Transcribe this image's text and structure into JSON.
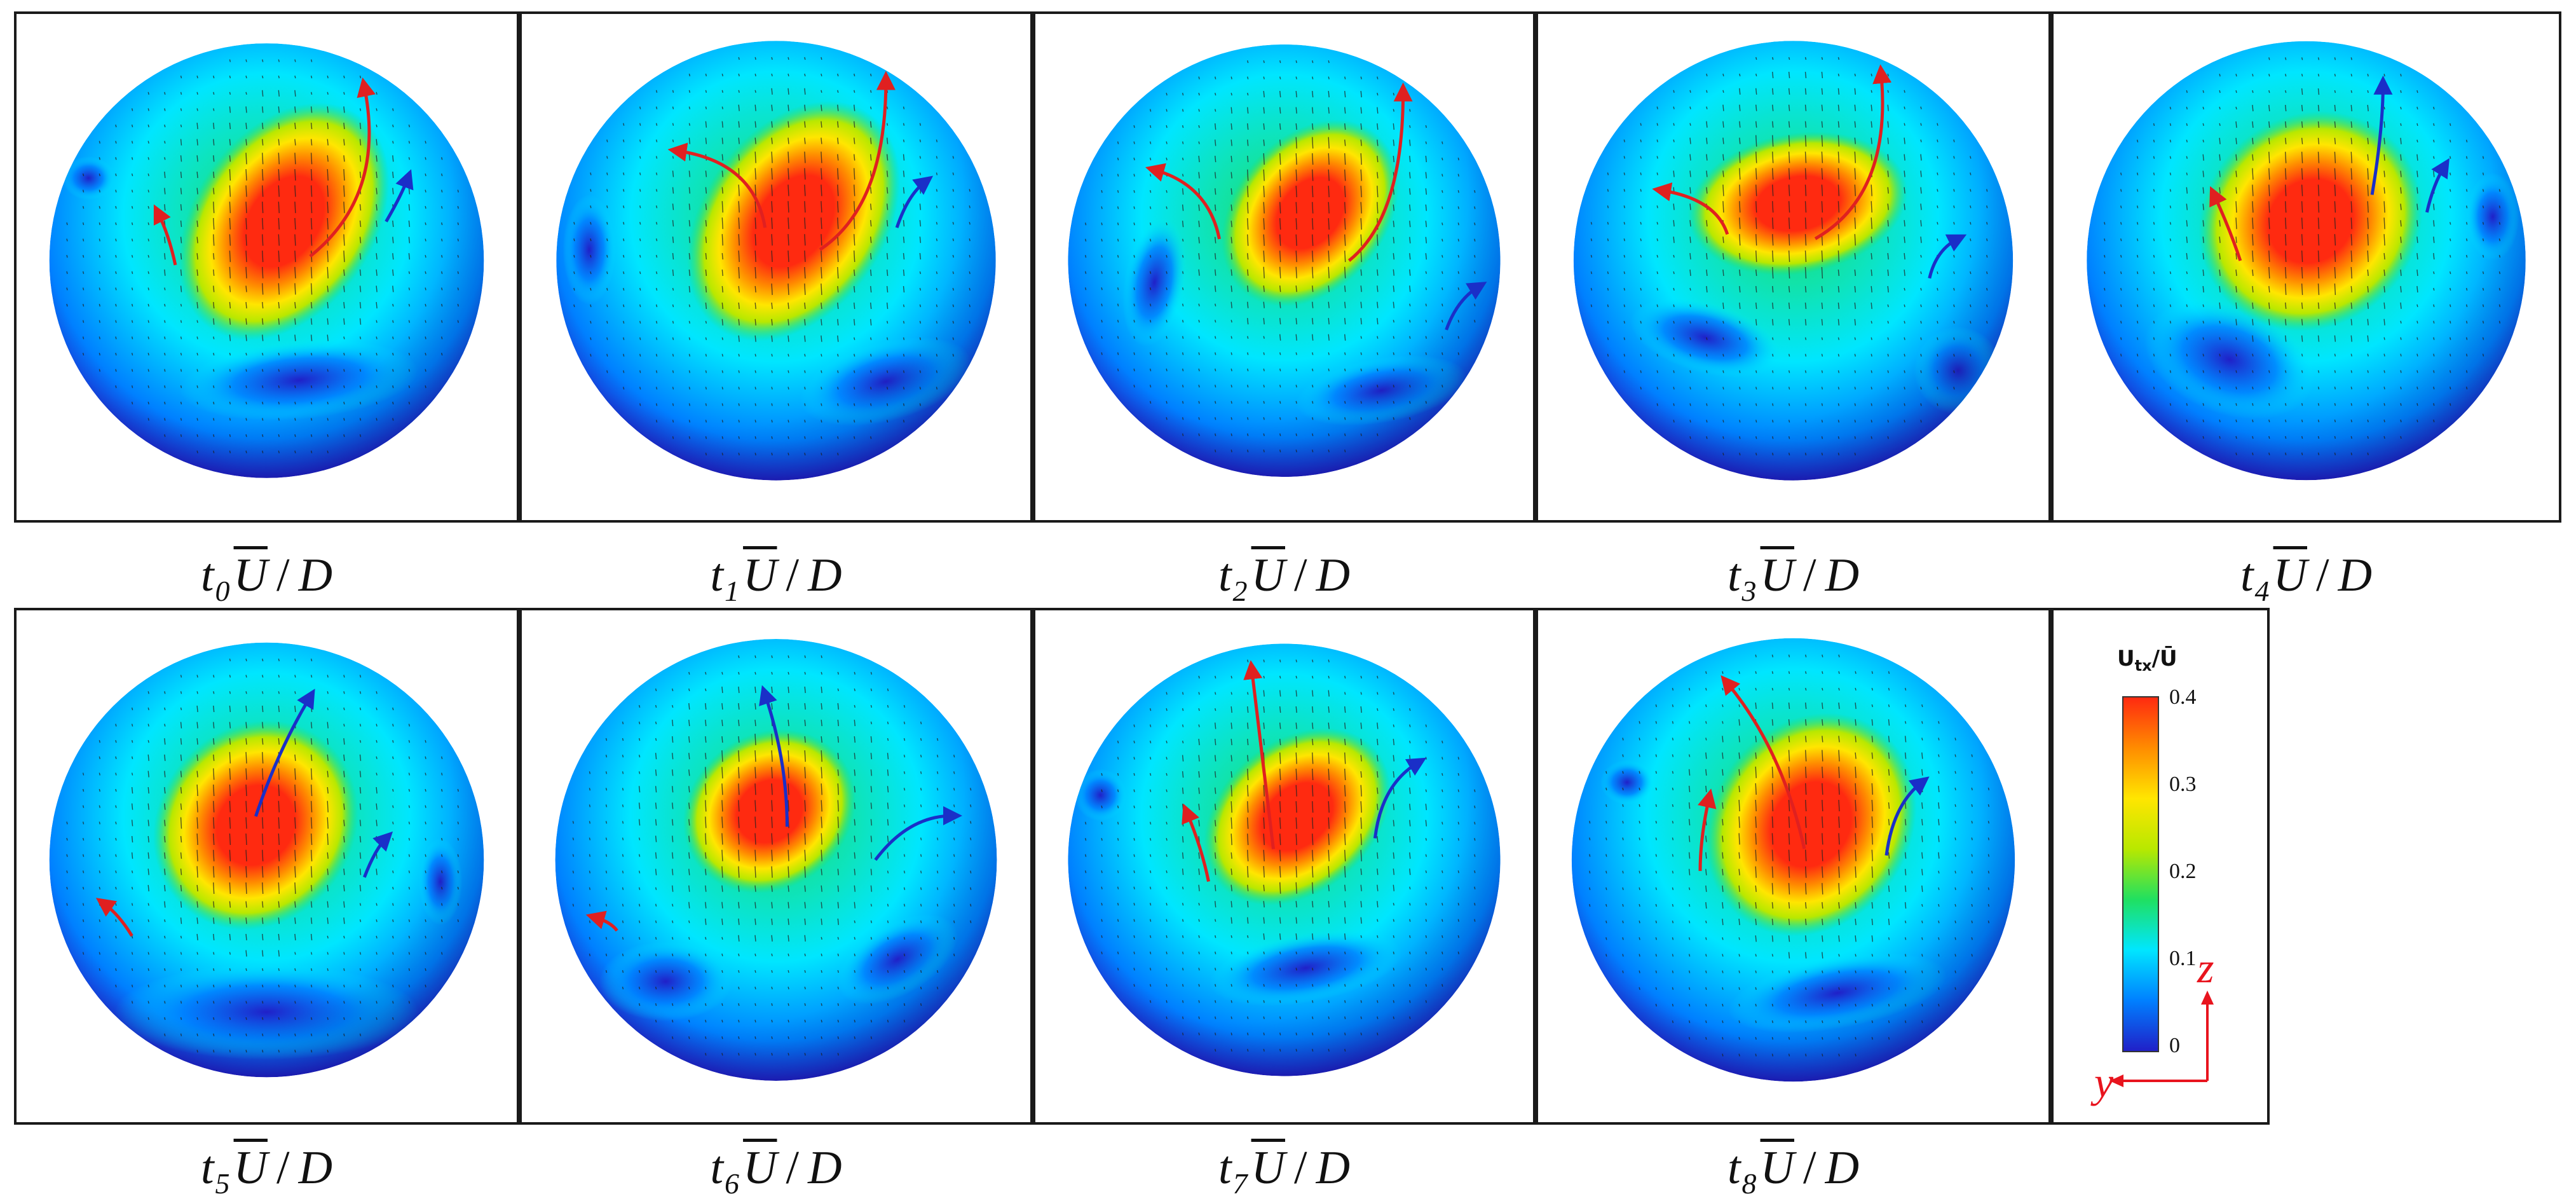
{
  "panels": [
    {
      "caption": {
        "t": "t",
        "index": "0",
        "ubar": "U",
        "sep": "/",
        "d": "D"
      }
    },
    {
      "caption": {
        "t": "t",
        "index": "1",
        "ubar": "U",
        "sep": "/",
        "d": "D"
      }
    },
    {
      "caption": {
        "t": "t",
        "index": "2",
        "ubar": "U",
        "sep": "/",
        "d": "D"
      }
    },
    {
      "caption": {
        "t": "t",
        "index": "3",
        "ubar": "U",
        "sep": "/",
        "d": "D"
      }
    },
    {
      "caption": {
        "t": "t",
        "index": "4",
        "ubar": "U",
        "sep": "/",
        "d": "D"
      }
    },
    {
      "caption": {
        "t": "t",
        "index": "5",
        "ubar": "U",
        "sep": "/",
        "d": "D"
      }
    },
    {
      "caption": {
        "t": "t",
        "index": "6",
        "ubar": "U",
        "sep": "/",
        "d": "D"
      }
    },
    {
      "caption": {
        "t": "t",
        "index": "7",
        "ubar": "U",
        "sep": "/",
        "d": "D"
      }
    },
    {
      "caption": {
        "t": "t",
        "index": "8",
        "ubar": "U",
        "sep": "/",
        "d": "D"
      }
    }
  ],
  "legend": {
    "title": "U_tx/Ū",
    "title_main": "U",
    "title_sub": "tx",
    "title_over": "Ū",
    "ticks": [
      "0.4",
      "0.3",
      "0.2",
      "0.1",
      "0"
    ],
    "colormap": [
      "#2020c8",
      "#0080ff",
      "#00e6ff",
      "#20e060",
      "#b8e800",
      "#ffe600",
      "#ff8c00",
      "#ff2a10"
    ]
  },
  "axes": {
    "vertical": "z",
    "horizontal": "y",
    "color": "#e8141e"
  },
  "arrow_colors": {
    "red": "#e02020",
    "blue": "#1a2fc8"
  }
}
